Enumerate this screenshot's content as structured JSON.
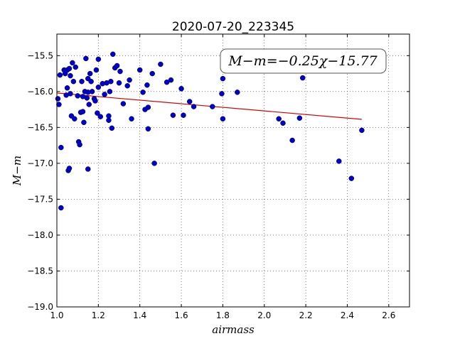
{
  "chart_data": {
    "type": "scatter",
    "title": "2020-07-20_223345",
    "xlabel": "airmass",
    "ylabel": "M−m",
    "xlim": [
      1.0,
      2.7
    ],
    "ylim": [
      -19.0,
      -15.2
    ],
    "xticks": [
      1.0,
      1.2,
      1.4,
      1.6,
      1.8,
      2.0,
      2.2,
      2.4,
      2.6
    ],
    "xtick_labels": [
      "1.0",
      "1.2",
      "1.4",
      "1.6",
      "1.8",
      "2.0",
      "2.2",
      "2.4",
      "2.6"
    ],
    "yticks": [
      -15.5,
      -16.0,
      -16.5,
      -17.0,
      -17.5,
      -18.0,
      -18.5,
      -19.0
    ],
    "ytick_labels": [
      "−15.5",
      "−16.0",
      "−16.5",
      "−17.0",
      "−17.5",
      "−18.0",
      "−18.5",
      "−19.0"
    ],
    "grid": true,
    "annotation": {
      "text": "M−m=−0.25χ−15.77",
      "placement": "top-right"
    },
    "fit_line": {
      "slope": -0.25,
      "intercept": -15.77,
      "x_range": [
        1.0,
        2.47
      ],
      "color": "#d40000"
    },
    "point_color": "#0000cc",
    "points": [
      [
        1.005,
        -16.1
      ],
      [
        1.01,
        -16.18
      ],
      [
        1.015,
        -15.77
      ],
      [
        1.02,
        -16.78
      ],
      [
        1.02,
        -17.62
      ],
      [
        1.035,
        -15.7
      ],
      [
        1.04,
        -15.75
      ],
      [
        1.045,
        -16.05
      ],
      [
        1.05,
        -15.7
      ],
      [
        1.05,
        -15.95
      ],
      [
        1.055,
        -17.1
      ],
      [
        1.06,
        -17.07
      ],
      [
        1.06,
        -15.68
      ],
      [
        1.065,
        -16.03
      ],
      [
        1.065,
        -15.78
      ],
      [
        1.07,
        -16.34
      ],
      [
        1.075,
        -15.6
      ],
      [
        1.08,
        -15.86
      ],
      [
        1.085,
        -16.38
      ],
      [
        1.09,
        -15.66
      ],
      [
        1.1,
        -16.06
      ],
      [
        1.105,
        -16.7
      ],
      [
        1.11,
        -16.74
      ],
      [
        1.115,
        -16.29
      ],
      [
        1.12,
        -15.86
      ],
      [
        1.125,
        -16.28
      ],
      [
        1.125,
        -16.07
      ],
      [
        1.13,
        -16.43
      ],
      [
        1.135,
        -16.0
      ],
      [
        1.14,
        -15.54
      ],
      [
        1.145,
        -16.09
      ],
      [
        1.15,
        -17.08
      ],
      [
        1.15,
        -16.01
      ],
      [
        1.15,
        -15.82
      ],
      [
        1.155,
        -16.18
      ],
      [
        1.16,
        -15.75
      ],
      [
        1.165,
        -15.86
      ],
      [
        1.17,
        -16.0
      ],
      [
        1.18,
        -16.1
      ],
      [
        1.185,
        -16.13
      ],
      [
        1.19,
        -15.7
      ],
      [
        1.195,
        -16.3
      ],
      [
        1.2,
        -15.55
      ],
      [
        1.2,
        -15.94
      ],
      [
        1.21,
        -16.35
      ],
      [
        1.22,
        -15.89
      ],
      [
        1.23,
        -16.04
      ],
      [
        1.24,
        -15.88
      ],
      [
        1.25,
        -16.34
      ],
      [
        1.25,
        -16.4
      ],
      [
        1.255,
        -16.0
      ],
      [
        1.26,
        -15.86
      ],
      [
        1.265,
        -16.51
      ],
      [
        1.27,
        -15.48
      ],
      [
        1.28,
        -15.67
      ],
      [
        1.29,
        -15.64
      ],
      [
        1.3,
        -15.88
      ],
      [
        1.305,
        -15.72
      ],
      [
        1.32,
        -16.17
      ],
      [
        1.34,
        -15.92
      ],
      [
        1.35,
        -15.84
      ],
      [
        1.36,
        -16.38
      ],
      [
        1.4,
        -15.7
      ],
      [
        1.415,
        -16.01
      ],
      [
        1.425,
        -16.25
      ],
      [
        1.435,
        -15.91
      ],
      [
        1.44,
        -16.22
      ],
      [
        1.44,
        -16.52
      ],
      [
        1.46,
        -15.75
      ],
      [
        1.47,
        -17.0
      ],
      [
        1.5,
        -15.62
      ],
      [
        1.53,
        -15.87
      ],
      [
        1.55,
        -15.84
      ],
      [
        1.56,
        -16.33
      ],
      [
        1.6,
        -15.96
      ],
      [
        1.61,
        -16.33
      ],
      [
        1.64,
        -16.14
      ],
      [
        1.66,
        -16.21
      ],
      [
        1.75,
        -16.21
      ],
      [
        1.795,
        -16.03
      ],
      [
        1.8,
        -16.38
      ],
      [
        1.8,
        -15.82
      ],
      [
        1.87,
        -16.01
      ],
      [
        2.0,
        -15.6
      ],
      [
        2.07,
        -16.38
      ],
      [
        2.09,
        -16.44
      ],
      [
        2.135,
        -16.68
      ],
      [
        2.17,
        -16.37
      ],
      [
        2.185,
        -15.81
      ],
      [
        2.36,
        -16.97
      ],
      [
        2.42,
        -17.21
      ],
      [
        2.47,
        -16.54
      ]
    ]
  }
}
